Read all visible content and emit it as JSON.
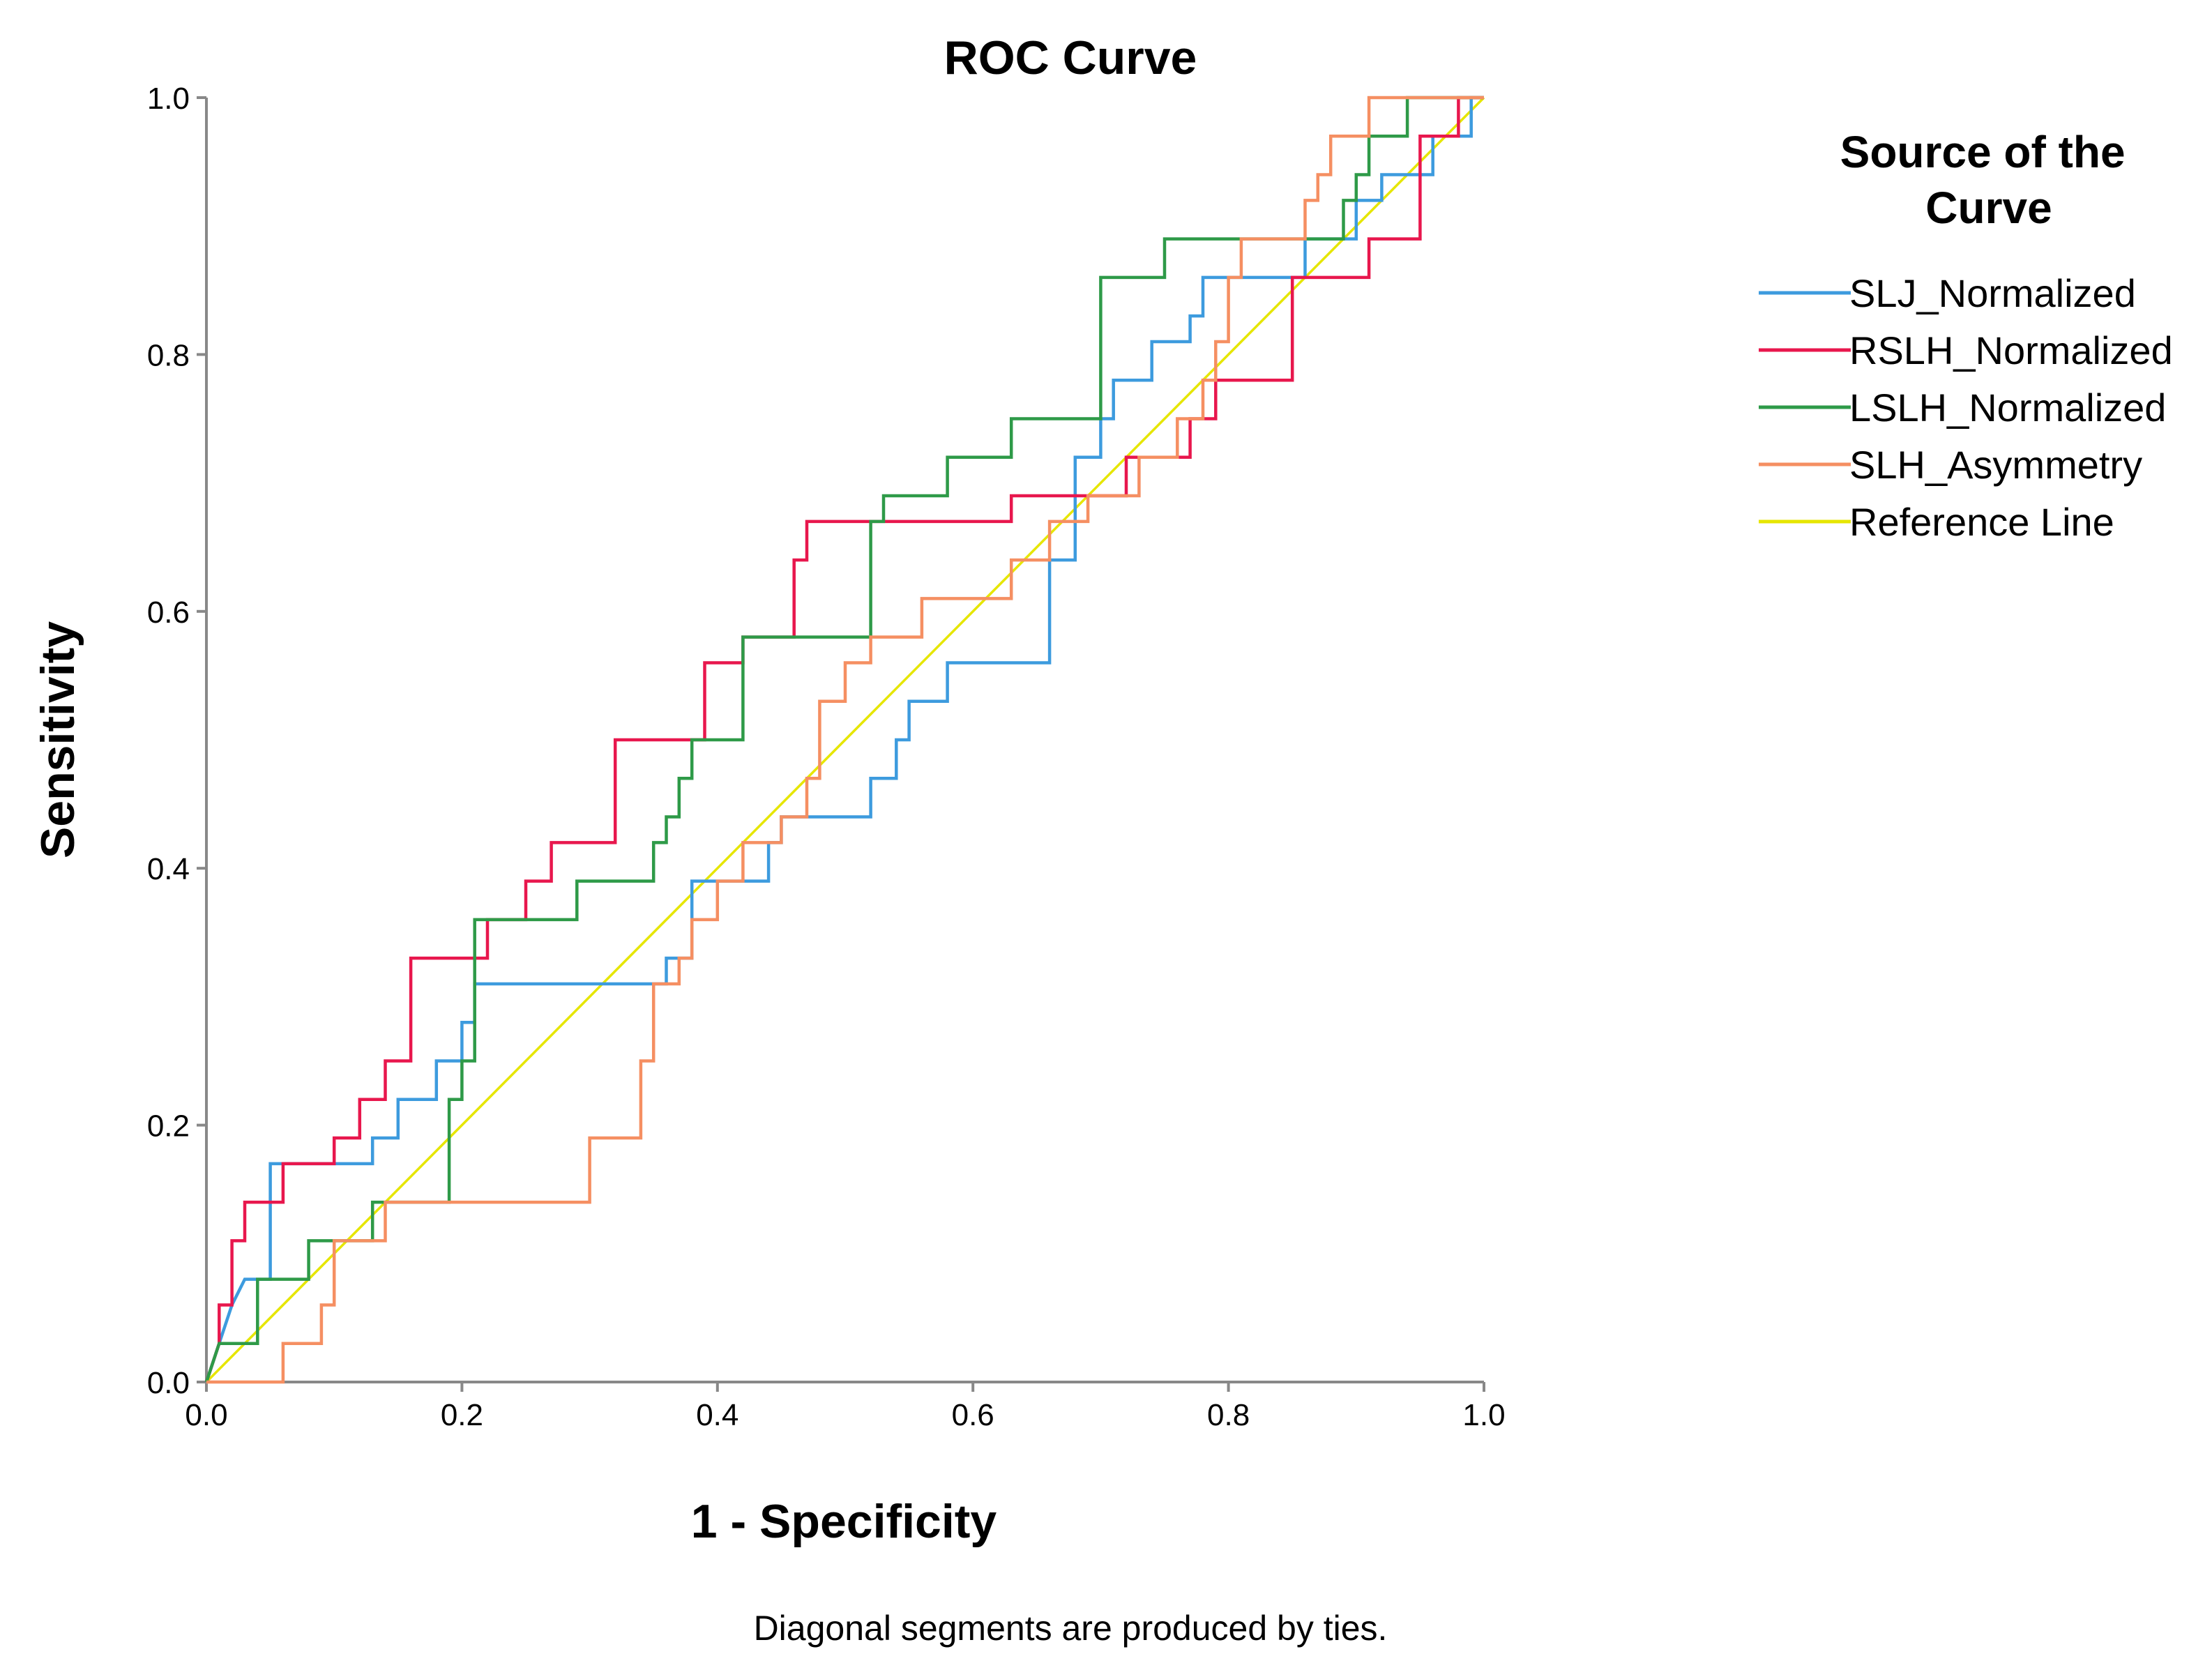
{
  "chart_data": {
    "type": "line",
    "title": "ROC Curve",
    "xlabel": "1 - Specificity",
    "ylabel": "Sensitivity",
    "xlim": [
      0,
      1
    ],
    "ylim": [
      0,
      1
    ],
    "xticks": [
      "0.0",
      "0.2",
      "0.4",
      "0.6",
      "0.8",
      "1.0"
    ],
    "yticks": [
      "0.0",
      "0.2",
      "0.4",
      "0.6",
      "0.8",
      "1.0"
    ],
    "grid": false,
    "legend_title_lines": [
      "Source of the",
      "Curve"
    ],
    "legend_position": "right",
    "footnote": "Diagonal segments are produced by ties.",
    "series": [
      {
        "name": "SLJ_Normalized",
        "color": "#3d9bde",
        "x": [
          0,
          0.01,
          0.02,
          0.03,
          0.05,
          0.05,
          0.13,
          0.13,
          0.15,
          0.15,
          0.18,
          0.18,
          0.2,
          0.2,
          0.21,
          0.21,
          0.22,
          0.22,
          0.36,
          0.36,
          0.38,
          0.38,
          0.44,
          0.44,
          0.45,
          0.45,
          0.52,
          0.52,
          0.54,
          0.54,
          0.55,
          0.55,
          0.58,
          0.58,
          0.66,
          0.66,
          0.68,
          0.68,
          0.7,
          0.7,
          0.71,
          0.71,
          0.74,
          0.74,
          0.77,
          0.77,
          0.78,
          0.78,
          0.86,
          0.86,
          0.9,
          0.9,
          0.92,
          0.92,
          0.96,
          0.96,
          0.99,
          0.99,
          1.0
        ],
        "y": [
          0,
          0.03,
          0.06,
          0.08,
          0.08,
          0.17,
          0.17,
          0.19,
          0.19,
          0.22,
          0.22,
          0.25,
          0.25,
          0.28,
          0.28,
          0.31,
          0.31,
          0.31,
          0.31,
          0.33,
          0.33,
          0.39,
          0.39,
          0.42,
          0.42,
          0.44,
          0.44,
          0.47,
          0.47,
          0.5,
          0.5,
          0.53,
          0.53,
          0.56,
          0.56,
          0.64,
          0.64,
          0.72,
          0.72,
          0.75,
          0.75,
          0.78,
          0.78,
          0.81,
          0.81,
          0.83,
          0.83,
          0.86,
          0.86,
          0.89,
          0.89,
          0.92,
          0.92,
          0.94,
          0.94,
          0.97,
          0.97,
          1.0,
          1.0
        ]
      },
      {
        "name": "RSLH_Normalized",
        "color": "#e8174d",
        "x": [
          0,
          0.01,
          0.01,
          0.02,
          0.02,
          0.03,
          0.03,
          0.06,
          0.06,
          0.1,
          0.1,
          0.12,
          0.12,
          0.14,
          0.14,
          0.16,
          0.16,
          0.22,
          0.22,
          0.25,
          0.25,
          0.27,
          0.27,
          0.32,
          0.32,
          0.39,
          0.39,
          0.42,
          0.42,
          0.46,
          0.46,
          0.47,
          0.47,
          0.63,
          0.63,
          0.72,
          0.72,
          0.77,
          0.77,
          0.79,
          0.79,
          0.82,
          0.82,
          0.85,
          0.85,
          0.91,
          0.91,
          0.95,
          0.95,
          0.98,
          0.98,
          1.0
        ],
        "y": [
          0,
          0.03,
          0.06,
          0.06,
          0.11,
          0.11,
          0.14,
          0.14,
          0.17,
          0.17,
          0.19,
          0.19,
          0.22,
          0.22,
          0.25,
          0.25,
          0.33,
          0.33,
          0.36,
          0.36,
          0.39,
          0.39,
          0.42,
          0.42,
          0.5,
          0.5,
          0.56,
          0.56,
          0.58,
          0.58,
          0.64,
          0.64,
          0.67,
          0.67,
          0.69,
          0.69,
          0.72,
          0.72,
          0.75,
          0.75,
          0.78,
          0.78,
          0.78,
          0.78,
          0.86,
          0.86,
          0.89,
          0.89,
          0.97,
          0.97,
          1.0,
          1.0
        ]
      },
      {
        "name": "LSLH_Normalized",
        "color": "#2e9a48",
        "x": [
          0,
          0.01,
          0.01,
          0.04,
          0.04,
          0.08,
          0.08,
          0.13,
          0.13,
          0.19,
          0.19,
          0.2,
          0.2,
          0.21,
          0.21,
          0.23,
          0.23,
          0.29,
          0.29,
          0.35,
          0.35,
          0.36,
          0.36,
          0.37,
          0.37,
          0.38,
          0.38,
          0.42,
          0.42,
          0.44,
          0.44,
          0.52,
          0.52,
          0.53,
          0.53,
          0.58,
          0.58,
          0.63,
          0.63,
          0.7,
          0.7,
          0.75,
          0.75,
          0.88,
          0.88,
          0.89,
          0.89,
          0.9,
          0.9,
          0.91,
          0.91,
          0.94,
          0.94,
          1.0
        ],
        "y": [
          0,
          0.03,
          0.03,
          0.03,
          0.08,
          0.08,
          0.11,
          0.11,
          0.14,
          0.14,
          0.22,
          0.22,
          0.25,
          0.25,
          0.36,
          0.36,
          0.36,
          0.36,
          0.39,
          0.39,
          0.42,
          0.42,
          0.44,
          0.44,
          0.47,
          0.47,
          0.5,
          0.5,
          0.58,
          0.58,
          0.58,
          0.58,
          0.67,
          0.67,
          0.69,
          0.69,
          0.72,
          0.72,
          0.75,
          0.75,
          0.86,
          0.86,
          0.89,
          0.89,
          0.89,
          0.89,
          0.92,
          0.92,
          0.94,
          0.94,
          0.97,
          0.97,
          1.0,
          1.0
        ]
      },
      {
        "name": "SLH_Asymmetry",
        "color": "#f58f62",
        "x": [
          0,
          0.06,
          0.06,
          0.09,
          0.09,
          0.1,
          0.1,
          0.14,
          0.14,
          0.3,
          0.3,
          0.34,
          0.34,
          0.35,
          0.35,
          0.37,
          0.37,
          0.38,
          0.38,
          0.4,
          0.4,
          0.42,
          0.42,
          0.45,
          0.45,
          0.47,
          0.47,
          0.48,
          0.48,
          0.5,
          0.5,
          0.52,
          0.52,
          0.56,
          0.56,
          0.63,
          0.63,
          0.66,
          0.66,
          0.69,
          0.69,
          0.73,
          0.73,
          0.76,
          0.76,
          0.78,
          0.78,
          0.79,
          0.79,
          0.8,
          0.8,
          0.81,
          0.81,
          0.86,
          0.86,
          0.87,
          0.87,
          0.88,
          0.88,
          0.91,
          0.91,
          0.93,
          0.93,
          1.0
        ],
        "y": [
          0,
          0.0,
          0.03,
          0.03,
          0.06,
          0.06,
          0.11,
          0.11,
          0.14,
          0.14,
          0.19,
          0.19,
          0.25,
          0.25,
          0.31,
          0.31,
          0.33,
          0.33,
          0.36,
          0.36,
          0.39,
          0.39,
          0.42,
          0.42,
          0.44,
          0.44,
          0.47,
          0.47,
          0.53,
          0.53,
          0.56,
          0.56,
          0.58,
          0.58,
          0.61,
          0.61,
          0.64,
          0.64,
          0.67,
          0.67,
          0.69,
          0.69,
          0.72,
          0.72,
          0.75,
          0.75,
          0.78,
          0.78,
          0.81,
          0.81,
          0.86,
          0.86,
          0.89,
          0.89,
          0.92,
          0.92,
          0.94,
          0.94,
          0.97,
          0.97,
          1.0,
          1.0,
          1.0,
          1.0
        ]
      },
      {
        "name": "Reference Line",
        "color": "#e6e600",
        "x": [
          0,
          1
        ],
        "y": [
          0,
          1
        ]
      }
    ]
  }
}
